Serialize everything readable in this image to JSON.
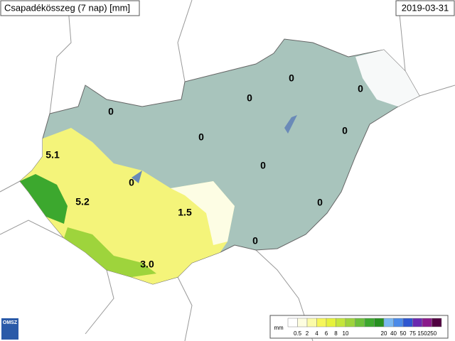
{
  "header": {
    "title": "Csapadékösszeg (7 nap) [mm]",
    "date": "2019-03-31"
  },
  "map": {
    "labels": [
      "5.1",
      "5.2",
      "0",
      "1.5",
      "3.0",
      "0",
      "0",
      "0",
      "0",
      "0",
      "0",
      "0",
      "0",
      "0"
    ]
  },
  "legend": {
    "unit": "mm",
    "colors": [
      "#ffffff",
      "#fdfde0",
      "#fbfba8",
      "#f6f65a",
      "#e6f23c",
      "#c4e63c",
      "#9ed43c",
      "#6cc03a",
      "#3ca82e",
      "#269020",
      "#7ab8f0",
      "#4a8ae8",
      "#2e56d0",
      "#6a2ab0",
      "#8a1a8a",
      "#500040"
    ],
    "labels": [
      "0.5",
      "2",
      "4",
      "6",
      "8",
      "10",
      "20",
      "40",
      "50",
      "75",
      "150",
      "250"
    ]
  },
  "logo": "OMSZ"
}
